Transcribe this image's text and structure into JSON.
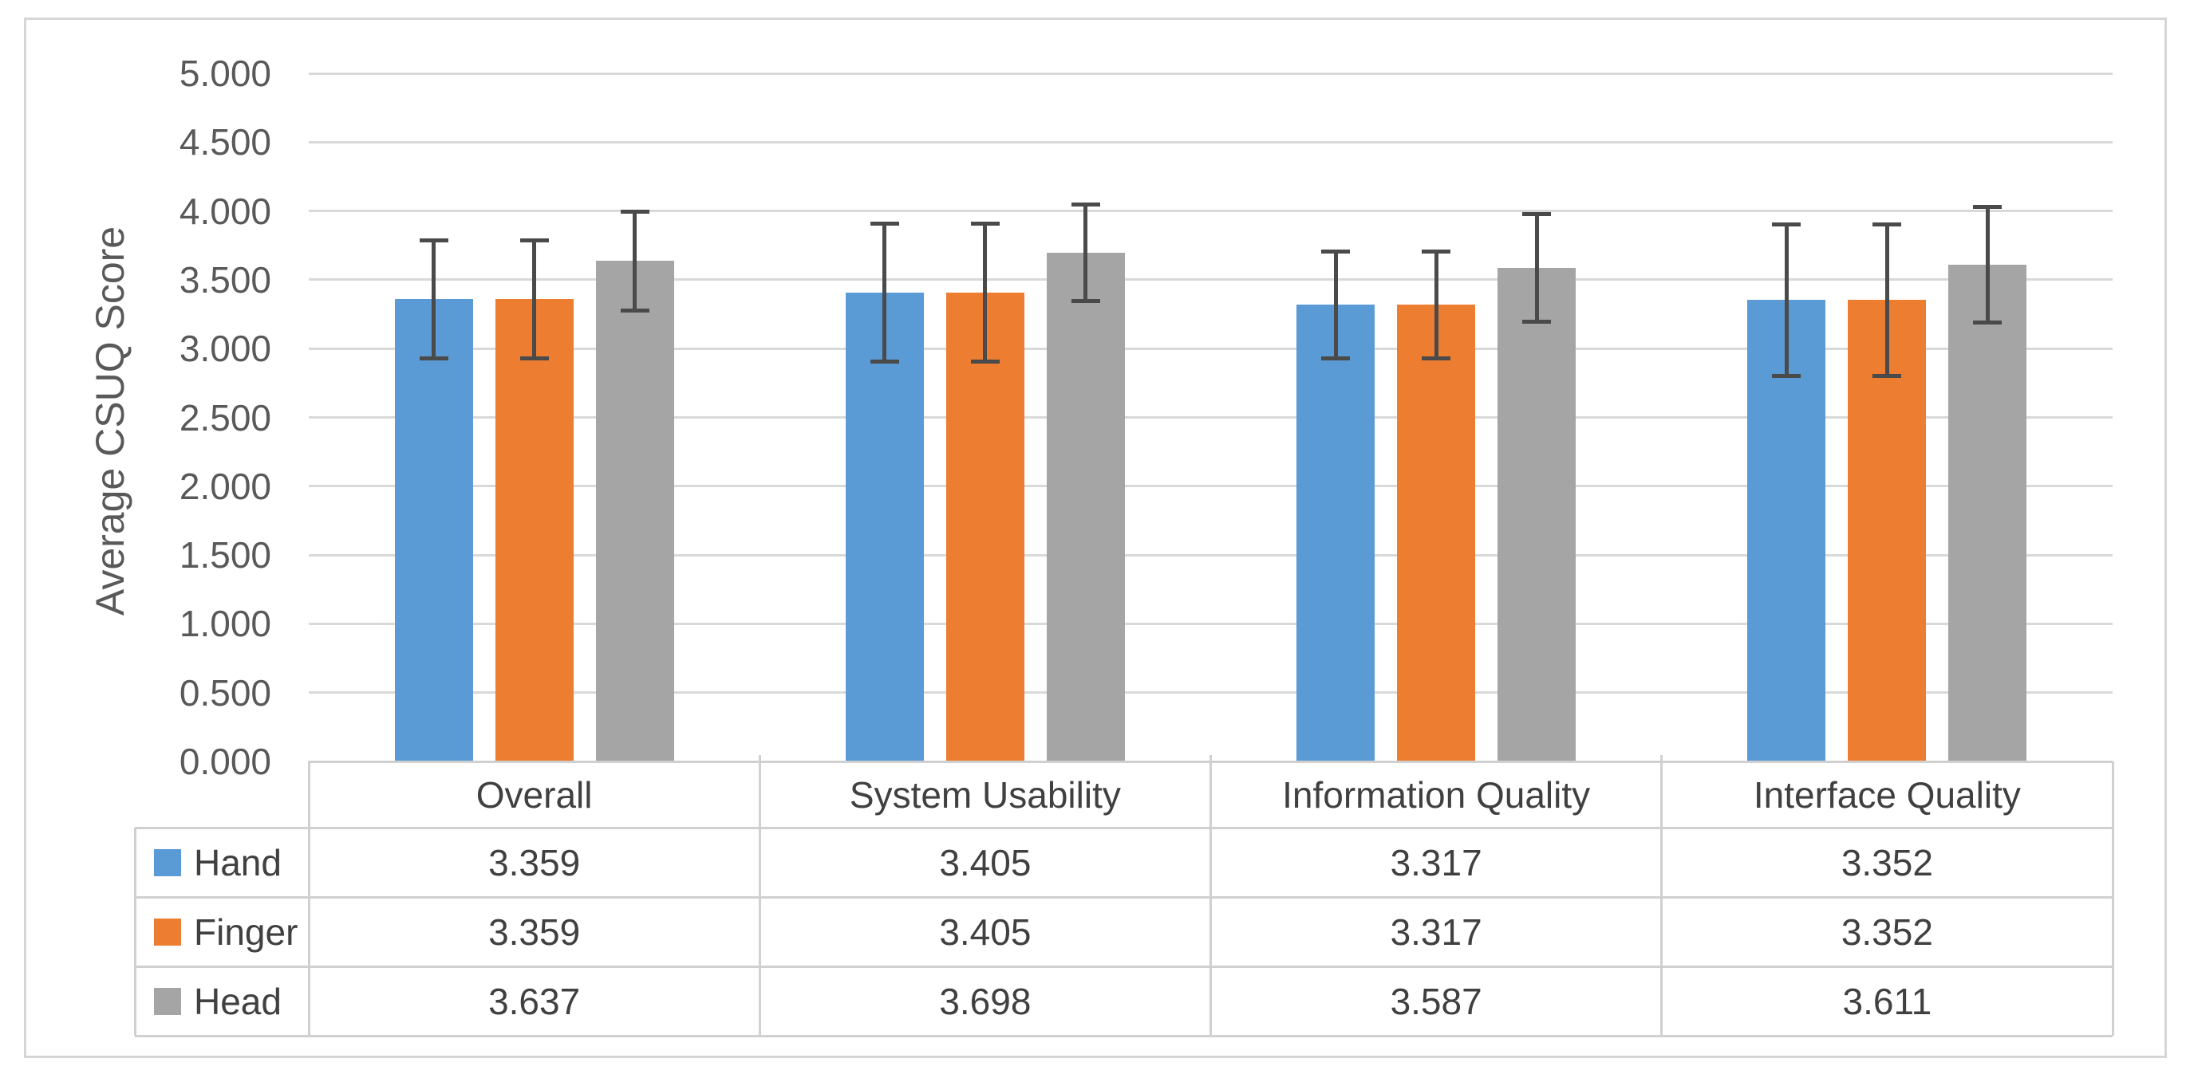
{
  "chart_data": {
    "type": "bar",
    "title": "",
    "xlabel": "",
    "ylabel": "Average CSUQ Score",
    "categories": [
      "Overall",
      "System Usability",
      "Information Quality",
      "Interface Quality"
    ],
    "series": [
      {
        "name": "Hand",
        "color": "#5b9bd5",
        "values": [
          3.359,
          3.405,
          3.317,
          3.352
        ],
        "error_bars": [
          0.43,
          0.5,
          0.39,
          0.55
        ]
      },
      {
        "name": "Finger",
        "color": "#ed7d31",
        "values": [
          3.359,
          3.405,
          3.317,
          3.352
        ],
        "error_bars": [
          0.43,
          0.5,
          0.39,
          0.55
        ]
      },
      {
        "name": "Head",
        "color": "#a5a5a5",
        "values": [
          3.637,
          3.698,
          3.587,
          3.611
        ],
        "error_bars": [
          0.36,
          0.35,
          0.39,
          0.42
        ]
      }
    ],
    "ylim": [
      0,
      5
    ],
    "ytick_step": 0.5,
    "yticks": [
      {
        "v": 5.0,
        "label": "5.000"
      },
      {
        "v": 4.5,
        "label": "4.500"
      },
      {
        "v": 4.0,
        "label": "4.000"
      },
      {
        "v": 3.5,
        "label": "3.500"
      },
      {
        "v": 3.0,
        "label": "3.000"
      },
      {
        "v": 2.5,
        "label": "2.500"
      },
      {
        "v": 2.0,
        "label": "2.000"
      },
      {
        "v": 1.5,
        "label": "1.500"
      },
      {
        "v": 1.0,
        "label": "1.000"
      },
      {
        "v": 0.5,
        "label": "0.500"
      },
      {
        "v": 0.0,
        "label": "0.000"
      }
    ],
    "grid": true,
    "error_bars_shown": true,
    "legend_position": "data-table-left-column",
    "data_table": {
      "shown": true,
      "value_decimals": 3,
      "row_labels": [
        "Hand",
        "Finger",
        "Head"
      ],
      "cell_values": [
        [
          "3.359",
          "3.405",
          "3.317",
          "3.352"
        ],
        [
          "3.359",
          "3.405",
          "3.317",
          "3.352"
        ],
        [
          "3.637",
          "3.698",
          "3.587",
          "3.611"
        ]
      ]
    },
    "colors": {
      "gridline": "#d9d9d9",
      "error_bar": "#4a4a4a",
      "table_border": "#d0d0d0",
      "axis_text": "#595959",
      "table_text": "#404040",
      "figure_border": "#d6d6d6",
      "background": "#ffffff"
    }
  }
}
